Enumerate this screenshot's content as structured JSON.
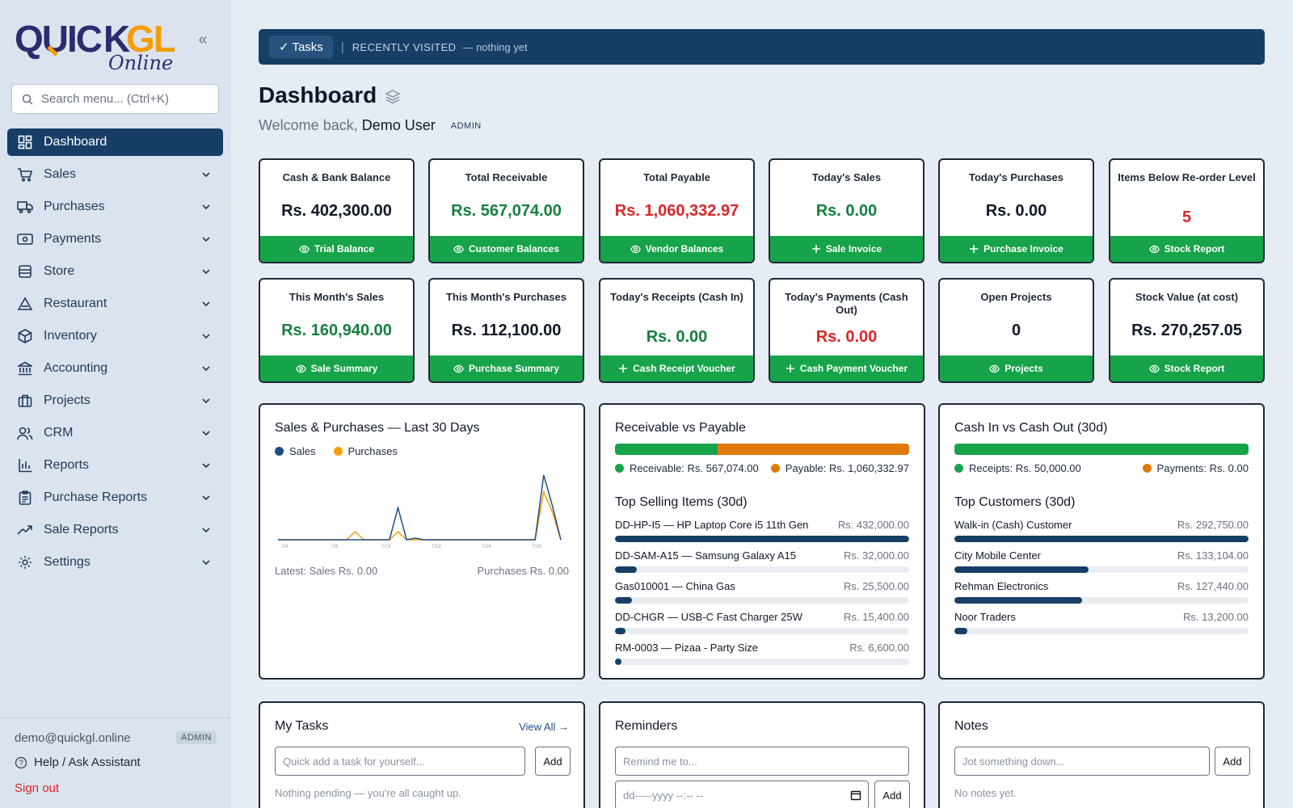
{
  "brand": {
    "name_top": "QUICKGL",
    "name_bottom": "Online"
  },
  "sidebar": {
    "search_placeholder": "Search menu... (Ctrl+K)",
    "items": [
      {
        "label": "Dashboard",
        "icon": "dashboard-icon"
      },
      {
        "label": "Sales",
        "icon": "cart-icon"
      },
      {
        "label": "Purchases",
        "icon": "truck-icon"
      },
      {
        "label": "Payments",
        "icon": "payment-icon"
      },
      {
        "label": "Store",
        "icon": "store-icon"
      },
      {
        "label": "Restaurant",
        "icon": "restaurant-icon"
      },
      {
        "label": "Inventory",
        "icon": "box-icon"
      },
      {
        "label": "Accounting",
        "icon": "bank-icon"
      },
      {
        "label": "Projects",
        "icon": "briefcase-icon"
      },
      {
        "label": "CRM",
        "icon": "users-icon"
      },
      {
        "label": "Reports",
        "icon": "bar-chart-icon"
      },
      {
        "label": "Purchase Reports",
        "icon": "clipboard-icon"
      },
      {
        "label": "Sale Reports",
        "icon": "trend-icon"
      },
      {
        "label": "Settings",
        "icon": "gear-icon"
      }
    ],
    "footer": {
      "email": "demo@quickgl.online",
      "role": "ADMIN",
      "help": "Help / Ask Assistant",
      "signout": "Sign out"
    }
  },
  "topbar": {
    "tasks_label": "✓ Tasks",
    "separator": "|",
    "recently_visited": "RECENTLY VISITED",
    "nothing_yet": "— nothing yet"
  },
  "header": {
    "title": "Dashboard",
    "welcome_prefix": "Welcome back,",
    "user": "Demo User",
    "role": "ADMIN"
  },
  "kpis": [
    {
      "title": "Cash & Bank Balance",
      "value": "Rs. 402,300.00",
      "color": "#111827",
      "button": "Trial Balance",
      "btn_icon": "eye"
    },
    {
      "title": "Total Receivable",
      "value": "Rs. 567,074.00",
      "color": "#15803d",
      "button": "Customer Balances",
      "btn_icon": "eye"
    },
    {
      "title": "Total Payable",
      "value": "Rs. 1,060,332.97",
      "color": "#dc2626",
      "button": "Vendor Balances",
      "btn_icon": "eye"
    },
    {
      "title": "Today's Sales",
      "value": "Rs. 0.00",
      "color": "#15803d",
      "button": "Sale Invoice",
      "btn_icon": "plus"
    },
    {
      "title": "Today's Purchases",
      "value": "Rs. 0.00",
      "color": "#111827",
      "button": "Purchase Invoice",
      "btn_icon": "plus"
    },
    {
      "title": "Items Below Re-order Level",
      "value": "5",
      "color": "#dc2626",
      "button": "Stock Report",
      "btn_icon": "eye"
    },
    {
      "title": "This Month's Sales",
      "value": "Rs. 160,940.00",
      "color": "#15803d",
      "button": "Sale Summary",
      "btn_icon": "eye"
    },
    {
      "title": "This Month's Purchases",
      "value": "Rs. 112,100.00",
      "color": "#111827",
      "button": "Purchase Summary",
      "btn_icon": "eye"
    },
    {
      "title": "Today's Receipts (Cash In)",
      "value": "Rs. 0.00",
      "color": "#15803d",
      "button": "Cash Receipt Voucher",
      "btn_icon": "plus"
    },
    {
      "title": "Today's Payments (Cash Out)",
      "value": "Rs. 0.00",
      "color": "#dc2626",
      "button": "Cash Payment Voucher",
      "btn_icon": "plus"
    },
    {
      "title": "Open Projects",
      "value": "0",
      "color": "#111827",
      "button": "Projects",
      "btn_icon": "eye"
    },
    {
      "title": "Stock Value (at cost)",
      "value": "Rs. 270,257.05",
      "color": "#111827",
      "button": "Stock Report",
      "btn_icon": "eye"
    }
  ],
  "sales_chart": {
    "title": "Sales & Purchases — Last 30 Days",
    "latest_sales": "Latest: Sales Rs. 0.00",
    "latest_purchases": "Purchases Rs. 0.00"
  },
  "chart_data": {
    "type": "line",
    "title": "Sales & Purchases — Last 30 Days",
    "x_tick_labels": [
      "7/4",
      "7/8",
      "7/14",
      "7/18",
      "7/24",
      "7/29"
    ],
    "series": [
      {
        "name": "Sales",
        "color": "#1f4e85",
        "values": [
          0,
          0,
          0,
          0,
          0,
          0,
          0,
          0,
          0,
          0,
          0,
          0,
          0,
          0,
          4000,
          0,
          200,
          0,
          0,
          0,
          0,
          0,
          0,
          0,
          0,
          0,
          0,
          0,
          0,
          0,
          0,
          8100,
          4300,
          0
        ]
      },
      {
        "name": "Purchases",
        "color": "#f59e0b",
        "values": [
          0,
          0,
          0,
          0,
          0,
          0,
          0,
          0,
          0,
          1000,
          0,
          0,
          0,
          0,
          1000,
          0,
          0,
          0,
          0,
          0,
          0,
          0,
          0,
          0,
          0,
          0,
          0,
          0,
          0,
          0,
          0,
          6000,
          3500,
          0
        ]
      }
    ],
    "ylim": [
      0,
      9000
    ],
    "grid": false,
    "legend": "top-left"
  },
  "recv_pay": {
    "title": "Receivable vs Payable",
    "receivable_share": 0.348,
    "receivable_color": "#16a34a",
    "payable_color": "#e07b0a",
    "receivable_label": "Receivable: Rs. 567,074.00",
    "payable_label": "Payable: Rs. 1,060,332.97",
    "top_title": "Top Selling Items (30d)",
    "items": [
      {
        "name": "DD-HP-I5 — HP Laptop Core i5 11th Gen",
        "value": "Rs. 432,000.00",
        "share": 1.0
      },
      {
        "name": "DD-SAM-A15 — Samsung Galaxy A15",
        "value": "Rs. 32,000.00",
        "share": 0.074
      },
      {
        "name": "Gas010001 — China Gas",
        "value": "Rs. 25,500.00",
        "share": 0.059
      },
      {
        "name": "DD-CHGR — USB-C Fast Charger 25W",
        "value": "Rs. 15,400.00",
        "share": 0.036
      },
      {
        "name": "RM-0003 — Pizaa - Party Size",
        "value": "Rs. 6,600.00",
        "share": 0.015
      }
    ]
  },
  "cash_io": {
    "title": "Cash In vs Cash Out (30d)",
    "receipts_share": 1.0,
    "receipts_label": "Receipts: Rs. 50,000.00",
    "payments_label": "Payments: Rs. 0.00",
    "receipts_color": "#16a34a",
    "payments_color": "#e07b0a",
    "top_title": "Top Customers (30d)",
    "customers": [
      {
        "name": "Walk-in (Cash) Customer",
        "value": "Rs. 292,750.00",
        "share": 1.0
      },
      {
        "name": "City Mobile Center",
        "value": "Rs. 133,104.00",
        "share": 0.455
      },
      {
        "name": "Rehman Electronics",
        "value": "Rs. 127,440.00",
        "share": 0.435
      },
      {
        "name": "Noor Traders",
        "value": "Rs. 13,200.00",
        "share": 0.045
      }
    ]
  },
  "tasks": {
    "title": "My Tasks",
    "view_all": "View All →",
    "placeholder": "Quick add a task for yourself...",
    "add": "Add",
    "empty": "Nothing pending — you're all caught up."
  },
  "reminders": {
    "title": "Reminders",
    "placeholder": "Remind me to...",
    "date_placeholder": "dd-----yyyy --:-- --",
    "add": "Add"
  },
  "notes": {
    "title": "Notes",
    "placeholder": "Jot something down...",
    "add": "Add",
    "empty": "No notes yet."
  }
}
